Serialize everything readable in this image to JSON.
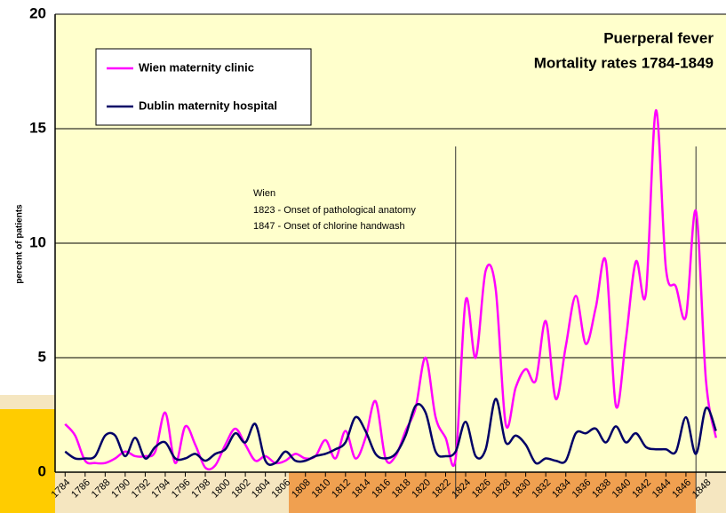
{
  "chart_data": {
    "type": "line",
    "title": "Puerperal fever",
    "subtitle": "Mortality rates 1784-1849",
    "y_label": "percent of patients",
    "annotations": [
      "Wien",
      "1823 - Onset of pathological anatomy",
      "1847 - Onset of chlorine handwash"
    ],
    "reference_lines": [
      1823,
      1847
    ],
    "x": [
      1784,
      1785,
      1786,
      1787,
      1788,
      1789,
      1790,
      1791,
      1792,
      1793,
      1794,
      1795,
      1796,
      1797,
      1798,
      1799,
      1800,
      1801,
      1802,
      1803,
      1804,
      1805,
      1806,
      1807,
      1808,
      1809,
      1810,
      1811,
      1812,
      1813,
      1814,
      1815,
      1816,
      1817,
      1818,
      1819,
      1820,
      1821,
      1822,
      1823,
      1824,
      1825,
      1826,
      1827,
      1828,
      1829,
      1830,
      1831,
      1832,
      1833,
      1834,
      1835,
      1836,
      1837,
      1838,
      1839,
      1840,
      1841,
      1842,
      1843,
      1844,
      1845,
      1846,
      1847,
      1848,
      1849
    ],
    "series": [
      {
        "name": "Wien maternity clinic",
        "color": "#ff00ff",
        "values": [
          2.1,
          1.6,
          0.5,
          0.4,
          0.4,
          0.6,
          0.9,
          0.7,
          0.7,
          0.9,
          2.6,
          0.4,
          2.0,
          1.2,
          0.2,
          0.3,
          1.2,
          1.9,
          1.2,
          0.5,
          0.7,
          0.4,
          0.5,
          0.8,
          0.6,
          0.7,
          1.4,
          0.6,
          1.8,
          0.6,
          1.5,
          3.1,
          0.6,
          0.7,
          1.8,
          2.8,
          5.0,
          2.4,
          1.5,
          0.6,
          7.5,
          5.0,
          8.8,
          8.0,
          2.1,
          3.7,
          4.5,
          4.0,
          6.6,
          3.2,
          5.5,
          7.7,
          5.6,
          7.2,
          9.2,
          2.9,
          5.8,
          9.2,
          7.8,
          15.8,
          8.9,
          8.1,
          6.8,
          11.4,
          4.0,
          1.5
        ]
      },
      {
        "name": "Dublin maternity hospital",
        "color": "#000066",
        "values": [
          0.9,
          0.6,
          0.6,
          0.7,
          1.6,
          1.6,
          0.7,
          1.5,
          0.6,
          1.1,
          1.3,
          0.6,
          0.6,
          0.8,
          0.5,
          0.8,
          1.0,
          1.7,
          1.3,
          2.1,
          0.5,
          0.4,
          0.9,
          0.5,
          0.5,
          0.7,
          0.8,
          1.0,
          1.3,
          2.4,
          1.8,
          0.8,
          0.6,
          0.8,
          1.6,
          2.9,
          2.6,
          0.9,
          0.7,
          0.9,
          2.2,
          0.7,
          1.0,
          3.2,
          1.3,
          1.6,
          1.2,
          0.4,
          0.6,
          0.5,
          0.5,
          1.7,
          1.7,
          1.9,
          1.3,
          2.0,
          1.3,
          1.7,
          1.1,
          1.0,
          1.0,
          0.9,
          2.4,
          0.8,
          2.8,
          1.8
        ]
      }
    ],
    "xlim": [
      1783,
      1850
    ],
    "xticks": [
      1784,
      1786,
      1788,
      1790,
      1792,
      1794,
      1796,
      1798,
      1800,
      1802,
      1804,
      1806,
      1808,
      1810,
      1812,
      1814,
      1816,
      1818,
      1820,
      1822,
      1824,
      1826,
      1828,
      1830,
      1832,
      1834,
      1836,
      1838,
      1840,
      1842,
      1844,
      1846,
      1848
    ],
    "ylim": [
      0,
      20
    ],
    "yticks": [
      0,
      5,
      10,
      15,
      20
    ],
    "grid": true
  }
}
